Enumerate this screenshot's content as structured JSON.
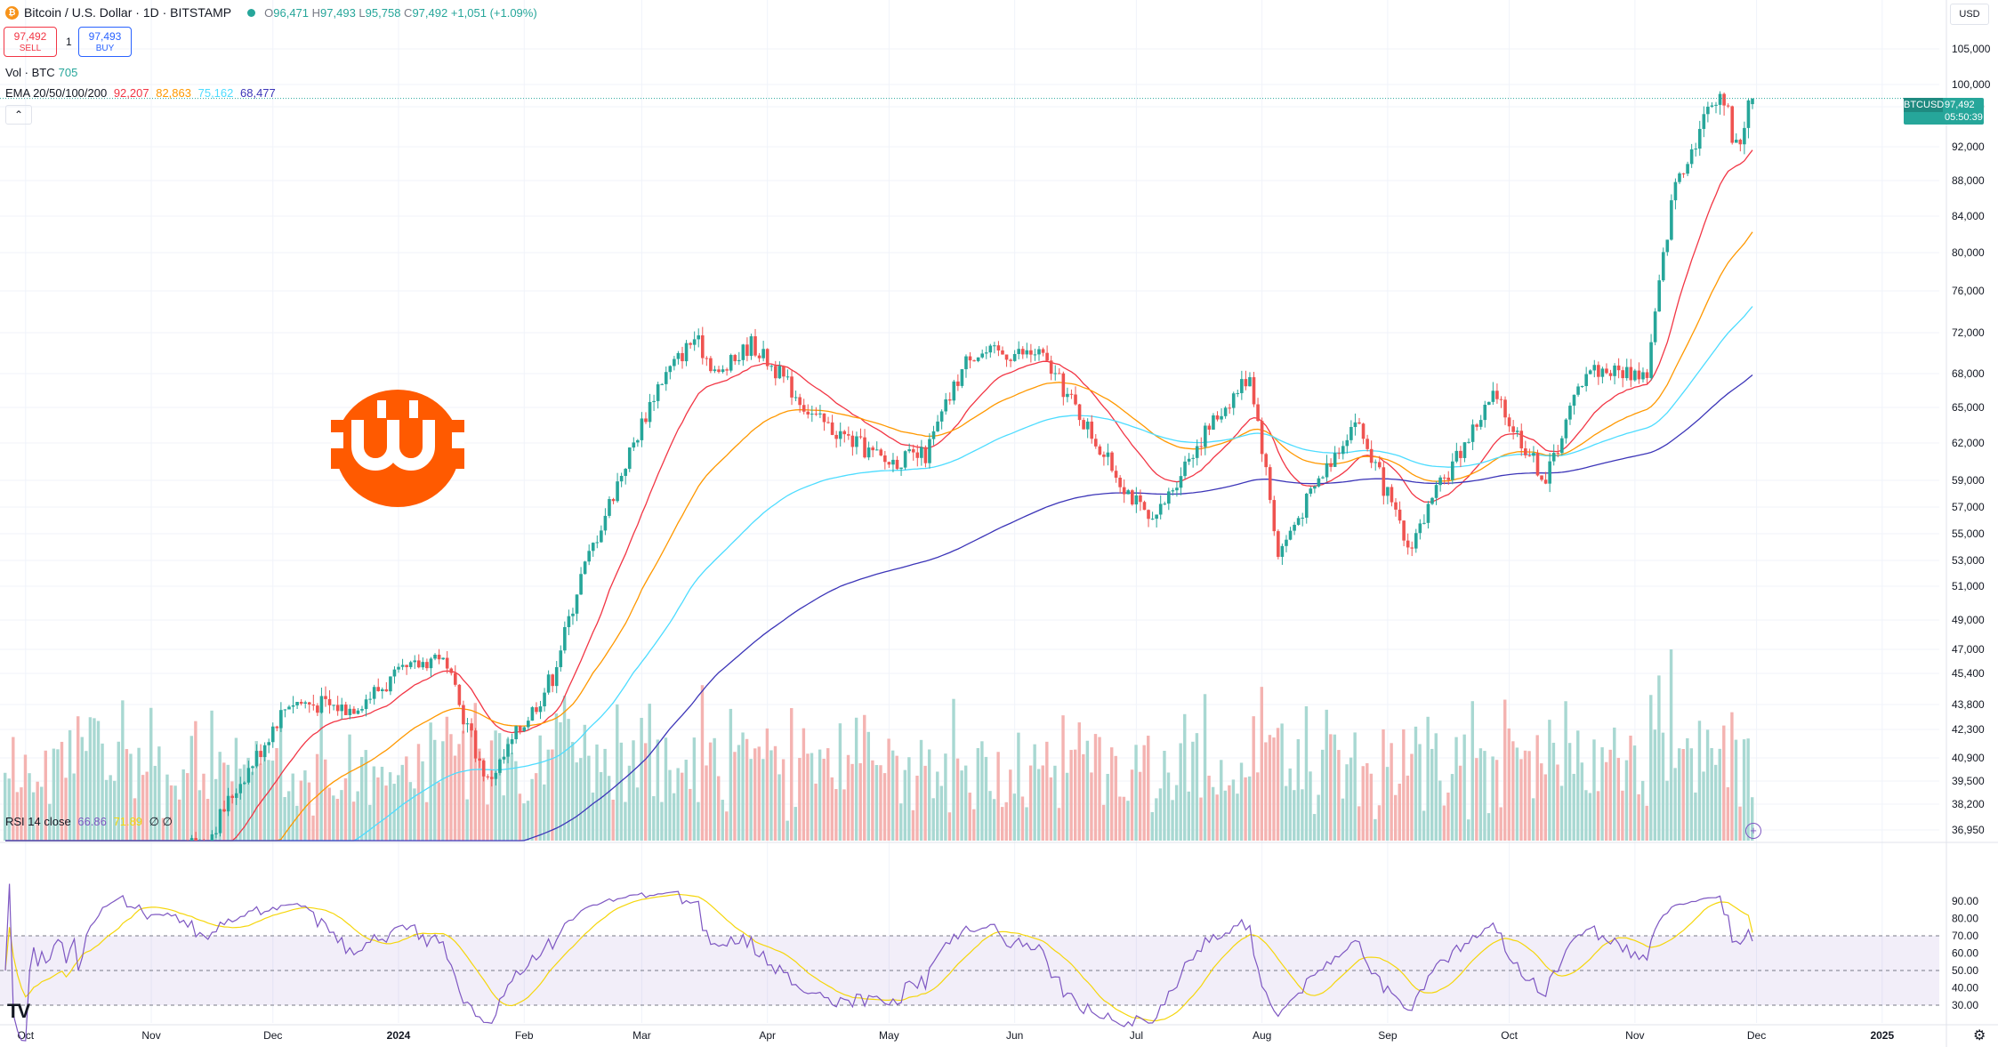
{
  "header": {
    "coin_icon": "bitcoin-icon",
    "title": "Bitcoin / U.S. Dollar · 1D · BITSTAMP",
    "status_color": "#26a69a",
    "ohlc": {
      "open": "96,471",
      "high": "97,493",
      "low": "95,758",
      "close": "97,492",
      "change": "+1,051 (+1.09%)"
    },
    "ohlc_labels": {
      "open": "O",
      "high": "H",
      "low": "L",
      "close": "C"
    }
  },
  "trade": {
    "sell_price": "97,492",
    "sell_label": "SELL",
    "spread": "1",
    "buy_price": "97,493",
    "buy_label": "BUY"
  },
  "volume_legend": {
    "label": "Vol · BTC",
    "value": "705"
  },
  "ema_legend": {
    "label": "EMA 20/50/100/200",
    "values": [
      "92,207",
      "82,863",
      "75,162",
      "68,477"
    ]
  },
  "rsi_legend": {
    "label": "RSI 14 close",
    "rsi": "66.86",
    "ma": "71.89",
    "extra": "∅ ∅"
  },
  "currency_button": "USD",
  "current_price_tag": {
    "symbol": "BTCUSD",
    "price": "97,492",
    "timer": "05:50:39"
  },
  "icons": {
    "settings": "gear-icon",
    "add": "plus-icon",
    "collapse": "chevron-up-icon",
    "logo": "tradingview-logo-icon"
  },
  "colors": {
    "up": "#26a69a",
    "down": "#ef5350",
    "ema20": "#f23645",
    "ema50": "#ff9800",
    "ema100": "#4ddcff",
    "ema200": "#3c35b8",
    "rsi": "#7e57c2",
    "rsi_ma": "#f5d60b",
    "brand": "#ff5a00"
  },
  "chart_data": {
    "type": "candlestick",
    "title": "Bitcoin / U.S. Dollar · 1D · BITSTAMP",
    "price_axis_ticks": [
      "105,000",
      "100,000",
      "96,000",
      "92,000",
      "88,000",
      "84,000",
      "80,000",
      "76,000",
      "72,000",
      "68,000",
      "65,000",
      "62,000",
      "59,000",
      "57,000",
      "55,000",
      "53,000",
      "51,000",
      "49,000",
      "47,000",
      "45,400",
      "43,800",
      "42,300",
      "40,900",
      "39,500",
      "38,200",
      "36,950"
    ],
    "rsi_axis_ticks": [
      "90.00",
      "80.00",
      "70.00",
      "60.00",
      "50.00",
      "40.00",
      "30.00"
    ],
    "time_axis_ticks": [
      "Oct",
      "Nov",
      "Dec",
      "2024",
      "Feb",
      "Mar",
      "Apr",
      "May",
      "Jun",
      "Jul",
      "Aug",
      "Sep",
      "Oct",
      "Nov",
      "Dec",
      "2025"
    ],
    "price_range": [
      36950,
      105000
    ],
    "close_anchors": [
      [
        "2023-09-25",
        26300
      ],
      [
        "2023-10-15",
        27100
      ],
      [
        "2023-10-25",
        34500
      ],
      [
        "2023-11-15",
        36500
      ],
      [
        "2023-12-05",
        44000
      ],
      [
        "2023-12-20",
        43600
      ],
      [
        "2024-01-11",
        46700
      ],
      [
        "2024-01-23",
        39500
      ],
      [
        "2024-02-08",
        45300
      ],
      [
        "2024-02-15",
        51800
      ],
      [
        "2024-02-28",
        62000
      ],
      [
        "2024-03-05",
        67000
      ],
      [
        "2024-03-14",
        71500
      ],
      [
        "2024-03-20",
        67800
      ],
      [
        "2024-03-28",
        71000
      ],
      [
        "2024-04-13",
        64000
      ],
      [
        "2024-04-30",
        60500
      ],
      [
        "2024-05-10",
        61000
      ],
      [
        "2024-05-21",
        70000
      ],
      [
        "2024-06-07",
        70000
      ],
      [
        "2024-06-24",
        60500
      ],
      [
        "2024-07-05",
        55500
      ],
      [
        "2024-07-14",
        61000
      ],
      [
        "2024-07-29",
        68000
      ],
      [
        "2024-08-05",
        53500
      ],
      [
        "2024-08-24",
        64000
      ],
      [
        "2024-09-06",
        53900
      ],
      [
        "2024-09-27",
        66000
      ],
      [
        "2024-10-10",
        59000
      ],
      [
        "2024-10-20",
        68500
      ],
      [
        "2024-11-04",
        68000
      ],
      [
        "2024-11-11",
        88000
      ],
      [
        "2024-11-22",
        98500
      ],
      [
        "2024-11-26",
        91800
      ],
      [
        "2024-11-30",
        97492
      ]
    ],
    "ema_last": {
      "ema20": 92207,
      "ema50": 82863,
      "ema100": 75162,
      "ema200": 68477
    },
    "last": {
      "open": 96471,
      "high": 97493,
      "low": 95758,
      "close": 97492
    },
    "volume_last": 705,
    "rsi_last": 66.86,
    "rsi_ma_last": 71.89,
    "rsi_levels": [
      70,
      50,
      30
    ],
    "grid": true
  }
}
